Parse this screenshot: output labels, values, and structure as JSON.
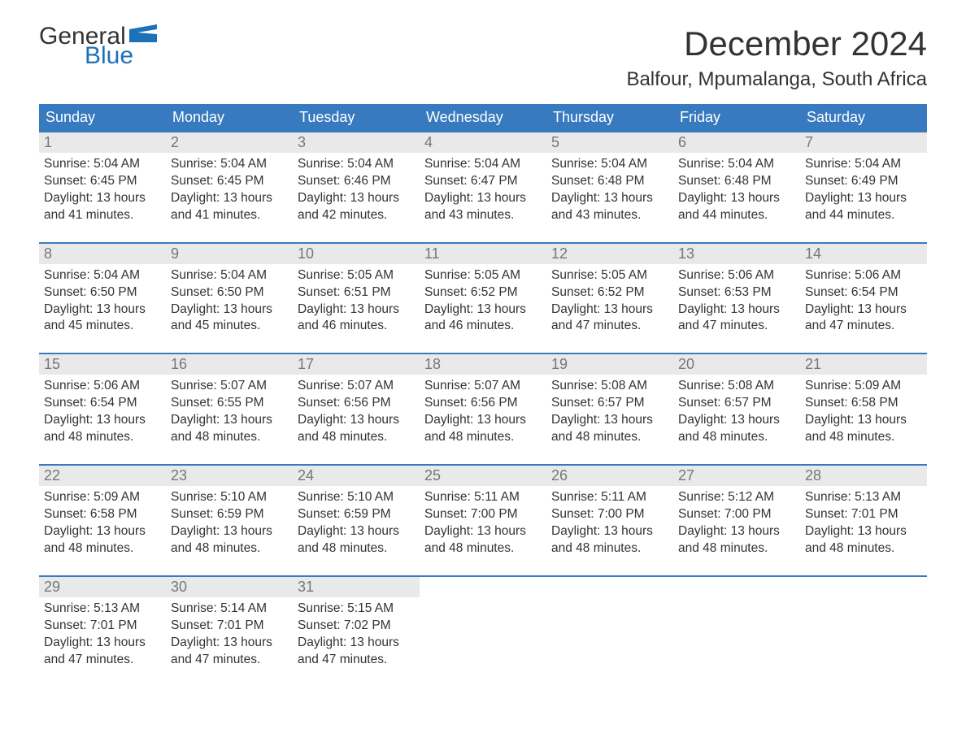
{
  "logo": {
    "text_general": "General",
    "text_blue": "Blue",
    "flag_color": "#1c72b8",
    "text_color_dark": "#333333"
  },
  "header": {
    "month_title": "December 2024",
    "location": "Balfour, Mpumalanga, South Africa"
  },
  "style": {
    "header_bg": "#387abf",
    "header_text": "#ffffff",
    "daynum_bg": "#e9e9e9",
    "daynum_text": "#777777",
    "body_text": "#333333",
    "week_border": "#387abf",
    "page_bg": "#ffffff",
    "font_family": "Arial",
    "title_fontsize": 42,
    "location_fontsize": 24,
    "dayhead_fontsize": 18,
    "body_fontsize": 15.5
  },
  "day_headers": [
    "Sunday",
    "Monday",
    "Tuesday",
    "Wednesday",
    "Thursday",
    "Friday",
    "Saturday"
  ],
  "weeks": [
    [
      {
        "n": "1",
        "sunrise": "Sunrise: 5:04 AM",
        "sunset": "Sunset: 6:45 PM",
        "dl1": "Daylight: 13 hours",
        "dl2": "and 41 minutes."
      },
      {
        "n": "2",
        "sunrise": "Sunrise: 5:04 AM",
        "sunset": "Sunset: 6:45 PM",
        "dl1": "Daylight: 13 hours",
        "dl2": "and 41 minutes."
      },
      {
        "n": "3",
        "sunrise": "Sunrise: 5:04 AM",
        "sunset": "Sunset: 6:46 PM",
        "dl1": "Daylight: 13 hours",
        "dl2": "and 42 minutes."
      },
      {
        "n": "4",
        "sunrise": "Sunrise: 5:04 AM",
        "sunset": "Sunset: 6:47 PM",
        "dl1": "Daylight: 13 hours",
        "dl2": "and 43 minutes."
      },
      {
        "n": "5",
        "sunrise": "Sunrise: 5:04 AM",
        "sunset": "Sunset: 6:48 PM",
        "dl1": "Daylight: 13 hours",
        "dl2": "and 43 minutes."
      },
      {
        "n": "6",
        "sunrise": "Sunrise: 5:04 AM",
        "sunset": "Sunset: 6:48 PM",
        "dl1": "Daylight: 13 hours",
        "dl2": "and 44 minutes."
      },
      {
        "n": "7",
        "sunrise": "Sunrise: 5:04 AM",
        "sunset": "Sunset: 6:49 PM",
        "dl1": "Daylight: 13 hours",
        "dl2": "and 44 minutes."
      }
    ],
    [
      {
        "n": "8",
        "sunrise": "Sunrise: 5:04 AM",
        "sunset": "Sunset: 6:50 PM",
        "dl1": "Daylight: 13 hours",
        "dl2": "and 45 minutes."
      },
      {
        "n": "9",
        "sunrise": "Sunrise: 5:04 AM",
        "sunset": "Sunset: 6:50 PM",
        "dl1": "Daylight: 13 hours",
        "dl2": "and 45 minutes."
      },
      {
        "n": "10",
        "sunrise": "Sunrise: 5:05 AM",
        "sunset": "Sunset: 6:51 PM",
        "dl1": "Daylight: 13 hours",
        "dl2": "and 46 minutes."
      },
      {
        "n": "11",
        "sunrise": "Sunrise: 5:05 AM",
        "sunset": "Sunset: 6:52 PM",
        "dl1": "Daylight: 13 hours",
        "dl2": "and 46 minutes."
      },
      {
        "n": "12",
        "sunrise": "Sunrise: 5:05 AM",
        "sunset": "Sunset: 6:52 PM",
        "dl1": "Daylight: 13 hours",
        "dl2": "and 47 minutes."
      },
      {
        "n": "13",
        "sunrise": "Sunrise: 5:06 AM",
        "sunset": "Sunset: 6:53 PM",
        "dl1": "Daylight: 13 hours",
        "dl2": "and 47 minutes."
      },
      {
        "n": "14",
        "sunrise": "Sunrise: 5:06 AM",
        "sunset": "Sunset: 6:54 PM",
        "dl1": "Daylight: 13 hours",
        "dl2": "and 47 minutes."
      }
    ],
    [
      {
        "n": "15",
        "sunrise": "Sunrise: 5:06 AM",
        "sunset": "Sunset: 6:54 PM",
        "dl1": "Daylight: 13 hours",
        "dl2": "and 48 minutes."
      },
      {
        "n": "16",
        "sunrise": "Sunrise: 5:07 AM",
        "sunset": "Sunset: 6:55 PM",
        "dl1": "Daylight: 13 hours",
        "dl2": "and 48 minutes."
      },
      {
        "n": "17",
        "sunrise": "Sunrise: 5:07 AM",
        "sunset": "Sunset: 6:56 PM",
        "dl1": "Daylight: 13 hours",
        "dl2": "and 48 minutes."
      },
      {
        "n": "18",
        "sunrise": "Sunrise: 5:07 AM",
        "sunset": "Sunset: 6:56 PM",
        "dl1": "Daylight: 13 hours",
        "dl2": "and 48 minutes."
      },
      {
        "n": "19",
        "sunrise": "Sunrise: 5:08 AM",
        "sunset": "Sunset: 6:57 PM",
        "dl1": "Daylight: 13 hours",
        "dl2": "and 48 minutes."
      },
      {
        "n": "20",
        "sunrise": "Sunrise: 5:08 AM",
        "sunset": "Sunset: 6:57 PM",
        "dl1": "Daylight: 13 hours",
        "dl2": "and 48 minutes."
      },
      {
        "n": "21",
        "sunrise": "Sunrise: 5:09 AM",
        "sunset": "Sunset: 6:58 PM",
        "dl1": "Daylight: 13 hours",
        "dl2": "and 48 minutes."
      }
    ],
    [
      {
        "n": "22",
        "sunrise": "Sunrise: 5:09 AM",
        "sunset": "Sunset: 6:58 PM",
        "dl1": "Daylight: 13 hours",
        "dl2": "and 48 minutes."
      },
      {
        "n": "23",
        "sunrise": "Sunrise: 5:10 AM",
        "sunset": "Sunset: 6:59 PM",
        "dl1": "Daylight: 13 hours",
        "dl2": "and 48 minutes."
      },
      {
        "n": "24",
        "sunrise": "Sunrise: 5:10 AM",
        "sunset": "Sunset: 6:59 PM",
        "dl1": "Daylight: 13 hours",
        "dl2": "and 48 minutes."
      },
      {
        "n": "25",
        "sunrise": "Sunrise: 5:11 AM",
        "sunset": "Sunset: 7:00 PM",
        "dl1": "Daylight: 13 hours",
        "dl2": "and 48 minutes."
      },
      {
        "n": "26",
        "sunrise": "Sunrise: 5:11 AM",
        "sunset": "Sunset: 7:00 PM",
        "dl1": "Daylight: 13 hours",
        "dl2": "and 48 minutes."
      },
      {
        "n": "27",
        "sunrise": "Sunrise: 5:12 AM",
        "sunset": "Sunset: 7:00 PM",
        "dl1": "Daylight: 13 hours",
        "dl2": "and 48 minutes."
      },
      {
        "n": "28",
        "sunrise": "Sunrise: 5:13 AM",
        "sunset": "Sunset: 7:01 PM",
        "dl1": "Daylight: 13 hours",
        "dl2": "and 48 minutes."
      }
    ],
    [
      {
        "n": "29",
        "sunrise": "Sunrise: 5:13 AM",
        "sunset": "Sunset: 7:01 PM",
        "dl1": "Daylight: 13 hours",
        "dl2": "and 47 minutes."
      },
      {
        "n": "30",
        "sunrise": "Sunrise: 5:14 AM",
        "sunset": "Sunset: 7:01 PM",
        "dl1": "Daylight: 13 hours",
        "dl2": "and 47 minutes."
      },
      {
        "n": "31",
        "sunrise": "Sunrise: 5:15 AM",
        "sunset": "Sunset: 7:02 PM",
        "dl1": "Daylight: 13 hours",
        "dl2": "and 47 minutes."
      },
      null,
      null,
      null,
      null
    ]
  ]
}
